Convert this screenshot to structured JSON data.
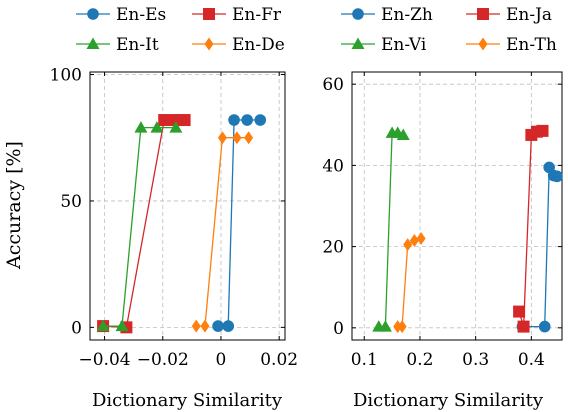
{
  "chart_data": [
    {
      "type": "line",
      "xlabel": "Dictionary Similarity",
      "ylabel": "Accuracy [%]",
      "xlim": [
        -0.045,
        0.022
      ],
      "ylim": [
        -5,
        101
      ],
      "xticks": [
        -0.04,
        -0.02,
        0,
        0.02
      ],
      "xtick_labels": [
        "−0.04",
        "−0.02",
        "0",
        "0.02"
      ],
      "yticks": [
        0,
        50,
        100
      ],
      "ytick_labels": [
        "0",
        "50",
        "100"
      ],
      "grid": true,
      "legend": "top",
      "series": [
        {
          "name": "En-Es",
          "color": "#1f77b4",
          "marker": "circle",
          "x": [
            -0.001,
            0.0025,
            0.0045,
            0.009,
            0.0135
          ],
          "y": [
            0.5,
            0.5,
            82,
            82,
            82
          ]
        },
        {
          "name": "En-Fr",
          "color": "#d62728",
          "marker": "square",
          "x": [
            -0.0405,
            -0.0325,
            -0.0195,
            -0.0155,
            -0.0125
          ],
          "y": [
            0.5,
            0,
            82,
            82,
            82
          ]
        },
        {
          "name": "En-It",
          "color": "#2ca02c",
          "marker": "triangle",
          "x": [
            -0.0405,
            -0.034,
            -0.0275,
            -0.022,
            -0.0155
          ],
          "y": [
            0.5,
            0.5,
            79,
            79,
            79
          ]
        },
        {
          "name": "En-De",
          "color": "#ff7f0e",
          "marker": "diamond",
          "x": [
            -0.0085,
            -0.0055,
            0.0005,
            0.0055,
            0.0095
          ],
          "y": [
            0.5,
            0.5,
            75,
            75,
            75
          ]
        }
      ]
    },
    {
      "type": "line",
      "xlabel": "Dictionary Similarity",
      "ylabel": "",
      "xlim": [
        0.078,
        0.455
      ],
      "ylim": [
        -3,
        63
      ],
      "xticks": [
        0.1,
        0.2,
        0.3,
        0.4
      ],
      "xtick_labels": [
        "0.1",
        "0.2",
        "0.3",
        "0.4"
      ],
      "yticks": [
        0,
        20,
        40,
        60
      ],
      "ytick_labels": [
        "0",
        "20",
        "40",
        "60"
      ],
      "grid": true,
      "legend": "top",
      "series": [
        {
          "name": "En-Zh",
          "color": "#1f77b4",
          "marker": "circle",
          "x": [
            0.384,
            0.424,
            0.432,
            0.44,
            0.446
          ],
          "y": [
            0.3,
            0.3,
            39.5,
            37.5,
            37.3
          ]
        },
        {
          "name": "En-Ja",
          "color": "#d62728",
          "marker": "square",
          "x": [
            0.378,
            0.386,
            0.4,
            0.41,
            0.42
          ],
          "y": [
            4,
            0.3,
            47.5,
            48.3,
            48.5
          ]
        },
        {
          "name": "En-Vi",
          "color": "#2ca02c",
          "marker": "triangle",
          "x": [
            0.126,
            0.138,
            0.15,
            0.16,
            0.17
          ],
          "y": [
            0.3,
            0.3,
            48,
            48,
            47.5
          ]
        },
        {
          "name": "En-Th",
          "color": "#ff7f0e",
          "marker": "diamond",
          "x": [
            0.16,
            0.168,
            0.178,
            0.19,
            0.202
          ],
          "y": [
            0.3,
            0.3,
            20.5,
            21.5,
            22
          ]
        }
      ]
    }
  ]
}
